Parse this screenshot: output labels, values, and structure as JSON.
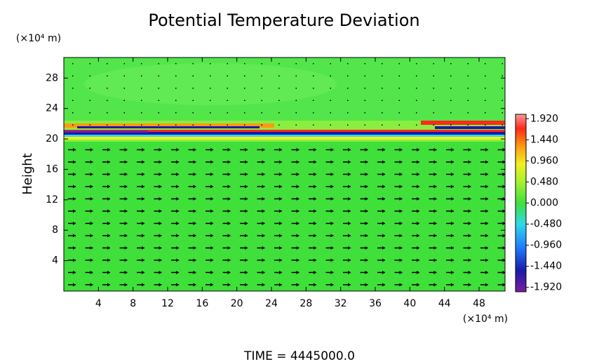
{
  "chart_data": {
    "type": "contour",
    "title": "Potential Temperature Deviation",
    "ylabel": "Height",
    "yunit": "(×10⁴ m)",
    "xunit": "(×10⁴ m)",
    "time_label": "TIME = 4445000.0",
    "xlim": [
      0,
      51
    ],
    "xticks": [
      4,
      8,
      12,
      16,
      20,
      24,
      28,
      32,
      36,
      40,
      44,
      48
    ],
    "ylim": [
      0,
      30.7
    ],
    "yticks": [
      4,
      8,
      12,
      16,
      20,
      24,
      28
    ],
    "clim": [
      -2.02,
      2.02
    ],
    "cticks": [
      {
        "value": 1.92,
        "label": "1.920"
      },
      {
        "value": 1.44,
        "label": "1.440"
      },
      {
        "value": 0.96,
        "label": "0.960"
      },
      {
        "value": 0.48,
        "label": "0.480"
      },
      {
        "value": 0,
        "label": "0.000"
      },
      {
        "value": -0.48,
        "label": "-0.480"
      },
      {
        "value": -0.96,
        "label": "-0.960"
      },
      {
        "value": -1.44,
        "label": "-1.440"
      },
      {
        "value": -1.92,
        "label": "-1.920"
      }
    ]
  }
}
